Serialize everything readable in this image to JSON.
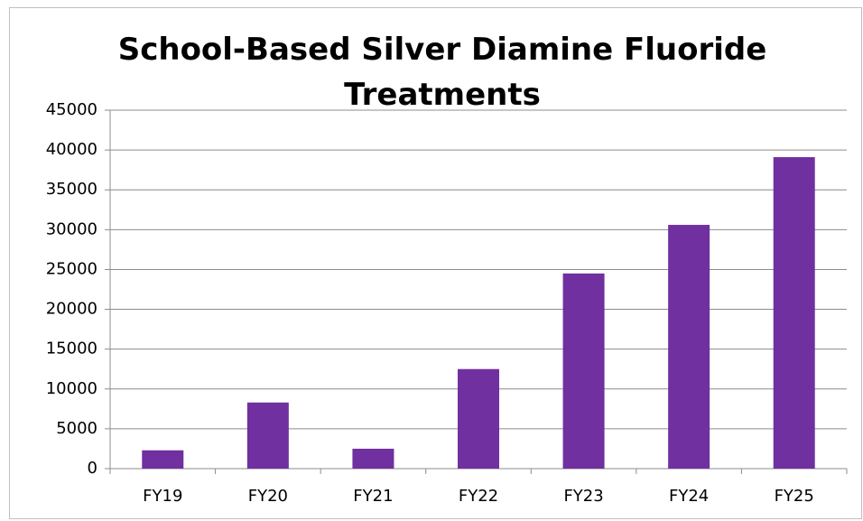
{
  "chart_data": {
    "type": "bar",
    "title": "School-Based Silver Diamine Fluoride Treatments",
    "categories": [
      "FY19",
      "FY20",
      "FY21",
      "FY22",
      "FY23",
      "FY24",
      "FY25"
    ],
    "values": [
      2300,
      8300,
      2500,
      12500,
      24500,
      30600,
      39100
    ],
    "color": "#7030a0",
    "ylim": [
      0,
      45000
    ],
    "yticks": [
      0,
      5000,
      10000,
      15000,
      20000,
      25000,
      30000,
      35000,
      40000,
      45000
    ],
    "grid": true
  }
}
